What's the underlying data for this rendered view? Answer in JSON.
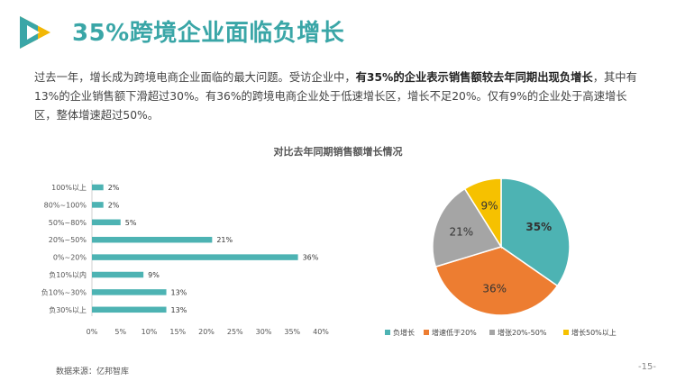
{
  "header": {
    "title": "35%跨境企业面临负增长"
  },
  "intro": {
    "part1": "过去一年，增长成为跨境电商企业面临的最大问题。受访企业中，",
    "bold": "有35%的企业表示销售额较去年同期出现负增长",
    "part2": "，其中有13%的企业销售额下滑超过30%。有36%的跨境电商企业处于低速增长区，增长不足20%。仅有9%的企业处于高速增长区，整体增速超过50%。"
  },
  "colors": {
    "teal": "#4db3b3",
    "orange": "#ed7d31",
    "gray": "#a5a5a5",
    "gold": "#f6c100",
    "title": "#3aa6a7"
  },
  "chart_data": [
    {
      "type": "bar",
      "orientation": "horizontal",
      "title": "对比去年同期销售额增长情况",
      "categories": [
        "100%以上",
        "80%~100%",
        "50%~80%",
        "20%~50%",
        "0%~20%",
        "负10%以内",
        "负10%~30%",
        "负30%以上"
      ],
      "values": [
        2,
        2,
        5,
        21,
        36,
        9,
        13,
        13
      ],
      "value_labels": [
        "2%",
        "2%",
        "5%",
        "21%",
        "36%",
        "9%",
        "13%",
        "13%"
      ],
      "xlim": [
        0,
        40
      ],
      "xticks": [
        "0%",
        "5%",
        "10%",
        "15%",
        "20%",
        "25%",
        "30%",
        "35%",
        "40%"
      ],
      "color": "#4db3b3"
    },
    {
      "type": "pie",
      "labels": [
        "负增长",
        "增速低于20%",
        "增张20%-50%",
        "增长50%以上"
      ],
      "values": [
        35,
        36,
        21,
        9
      ],
      "value_labels": [
        "35%",
        "36%",
        "21%",
        "9%"
      ],
      "colors": [
        "#4db3b3",
        "#ed7d31",
        "#a5a5a5",
        "#f6c100"
      ],
      "legend_position": "bottom"
    }
  ],
  "footer": {
    "source": "数据来源：亿邦智库",
    "page": "-15-"
  }
}
